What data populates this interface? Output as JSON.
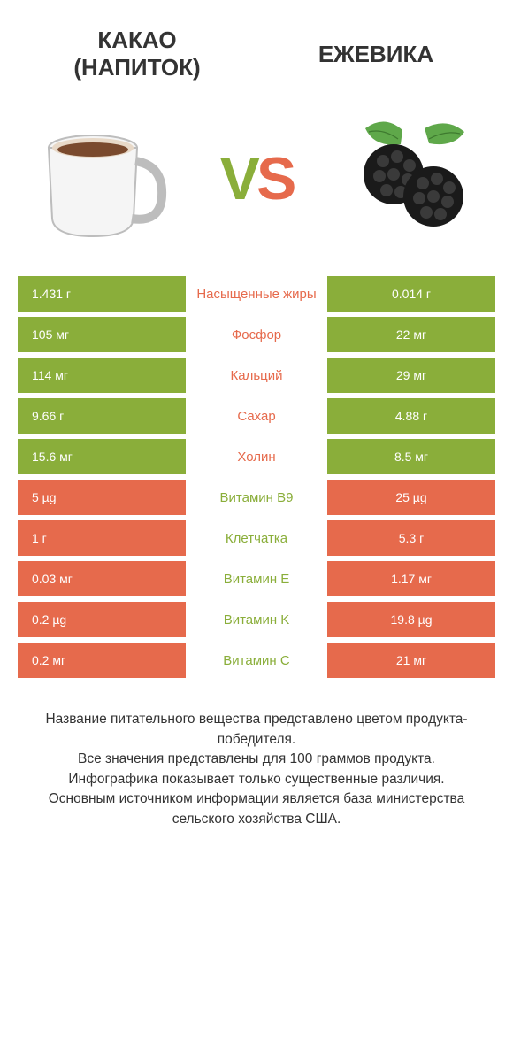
{
  "colors": {
    "left_winner": "#8aae3a",
    "right_winner": "#e66a4c",
    "nutrient_left": "#e66a4c",
    "nutrient_right": "#8aae3a",
    "background": "#ffffff",
    "text": "#333333"
  },
  "titles": {
    "left_line1": "Какао",
    "left_line2": "(напиток)",
    "right": "Ежевика"
  },
  "vs": {
    "v": "V",
    "s": "S"
  },
  "rows": [
    {
      "left": "1.431 г",
      "nutrient": "Насыщенные жиры",
      "right": "0.014 г",
      "winner": "left"
    },
    {
      "left": "105 мг",
      "nutrient": "Фосфор",
      "right": "22 мг",
      "winner": "left"
    },
    {
      "left": "114 мг",
      "nutrient": "Кальций",
      "right": "29 мг",
      "winner": "left"
    },
    {
      "left": "9.66 г",
      "nutrient": "Сахар",
      "right": "4.88 г",
      "winner": "left"
    },
    {
      "left": "15.6 мг",
      "nutrient": "Холин",
      "right": "8.5 мг",
      "winner": "left"
    },
    {
      "left": "5 µg",
      "nutrient": "Витамин B9",
      "right": "25 µg",
      "winner": "right"
    },
    {
      "left": "1 г",
      "nutrient": "Клетчатка",
      "right": "5.3 г",
      "winner": "right"
    },
    {
      "left": "0.03 мг",
      "nutrient": "Витамин E",
      "right": "1.17 мг",
      "winner": "right"
    },
    {
      "left": "0.2 µg",
      "nutrient": "Витамин K",
      "right": "19.8 µg",
      "winner": "right"
    },
    {
      "left": "0.2 мг",
      "nutrient": "Витамин C",
      "right": "21 мг",
      "winner": "right"
    }
  ],
  "footer": {
    "line1": "Название питательного вещества представлено цветом продукта-победителя.",
    "line2": "Все значения представлены для 100 граммов продукта.",
    "line3": "Инфографика показывает только существенные различия.",
    "line4": "Основным источником информации является база министерства сельского хозяйства США."
  }
}
